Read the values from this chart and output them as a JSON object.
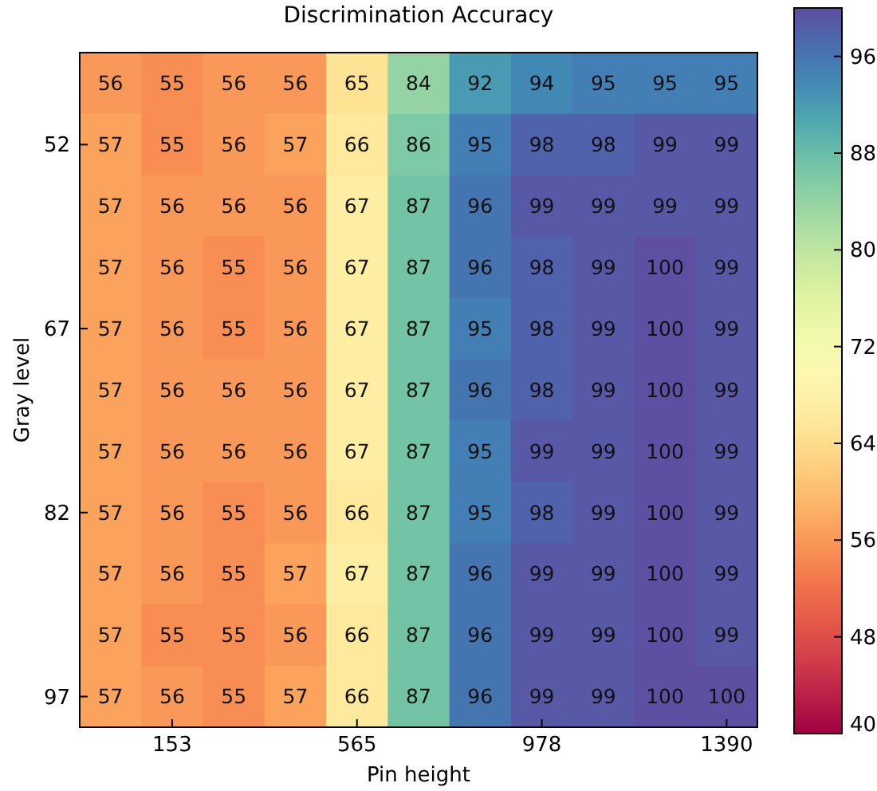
{
  "chart_data": {
    "type": "heatmap",
    "title": "Discrimination Accuracy",
    "xlabel": "Pin height",
    "ylabel": "Gray level",
    "categories": [
      null,
      "153",
      null,
      null,
      "565",
      null,
      null,
      "978",
      null,
      null,
      "1390"
    ],
    "y_categories": [
      null,
      "52",
      null,
      null,
      "67",
      null,
      null,
      "82",
      null,
      null,
      "97"
    ],
    "cells": [
      [
        56,
        55,
        56,
        56,
        65,
        84,
        92,
        94,
        95,
        95,
        95
      ],
      [
        57,
        55,
        56,
        57,
        66,
        86,
        95,
        98,
        98,
        99,
        99
      ],
      [
        57,
        56,
        56,
        56,
        67,
        87,
        96,
        99,
        99,
        99,
        99
      ],
      [
        57,
        56,
        55,
        56,
        67,
        87,
        96,
        98,
        99,
        100,
        99
      ],
      [
        57,
        56,
        55,
        56,
        67,
        87,
        95,
        98,
        99,
        100,
        99
      ],
      [
        57,
        56,
        56,
        56,
        67,
        87,
        96,
        98,
        99,
        100,
        99
      ],
      [
        57,
        56,
        56,
        56,
        67,
        87,
        95,
        99,
        99,
        100,
        99
      ],
      [
        57,
        56,
        55,
        56,
        66,
        87,
        95,
        98,
        99,
        100,
        99
      ],
      [
        57,
        56,
        55,
        57,
        67,
        87,
        96,
        99,
        99,
        100,
        99
      ],
      [
        57,
        55,
        55,
        56,
        66,
        87,
        96,
        99,
        99,
        100,
        99
      ],
      [
        57,
        56,
        55,
        57,
        66,
        87,
        96,
        99,
        99,
        100,
        100
      ]
    ],
    "data_labels": true,
    "clim": [
      40,
      100
    ],
    "cticks": [
      40,
      48,
      56,
      64,
      72,
      80,
      88,
      96
    ]
  }
}
